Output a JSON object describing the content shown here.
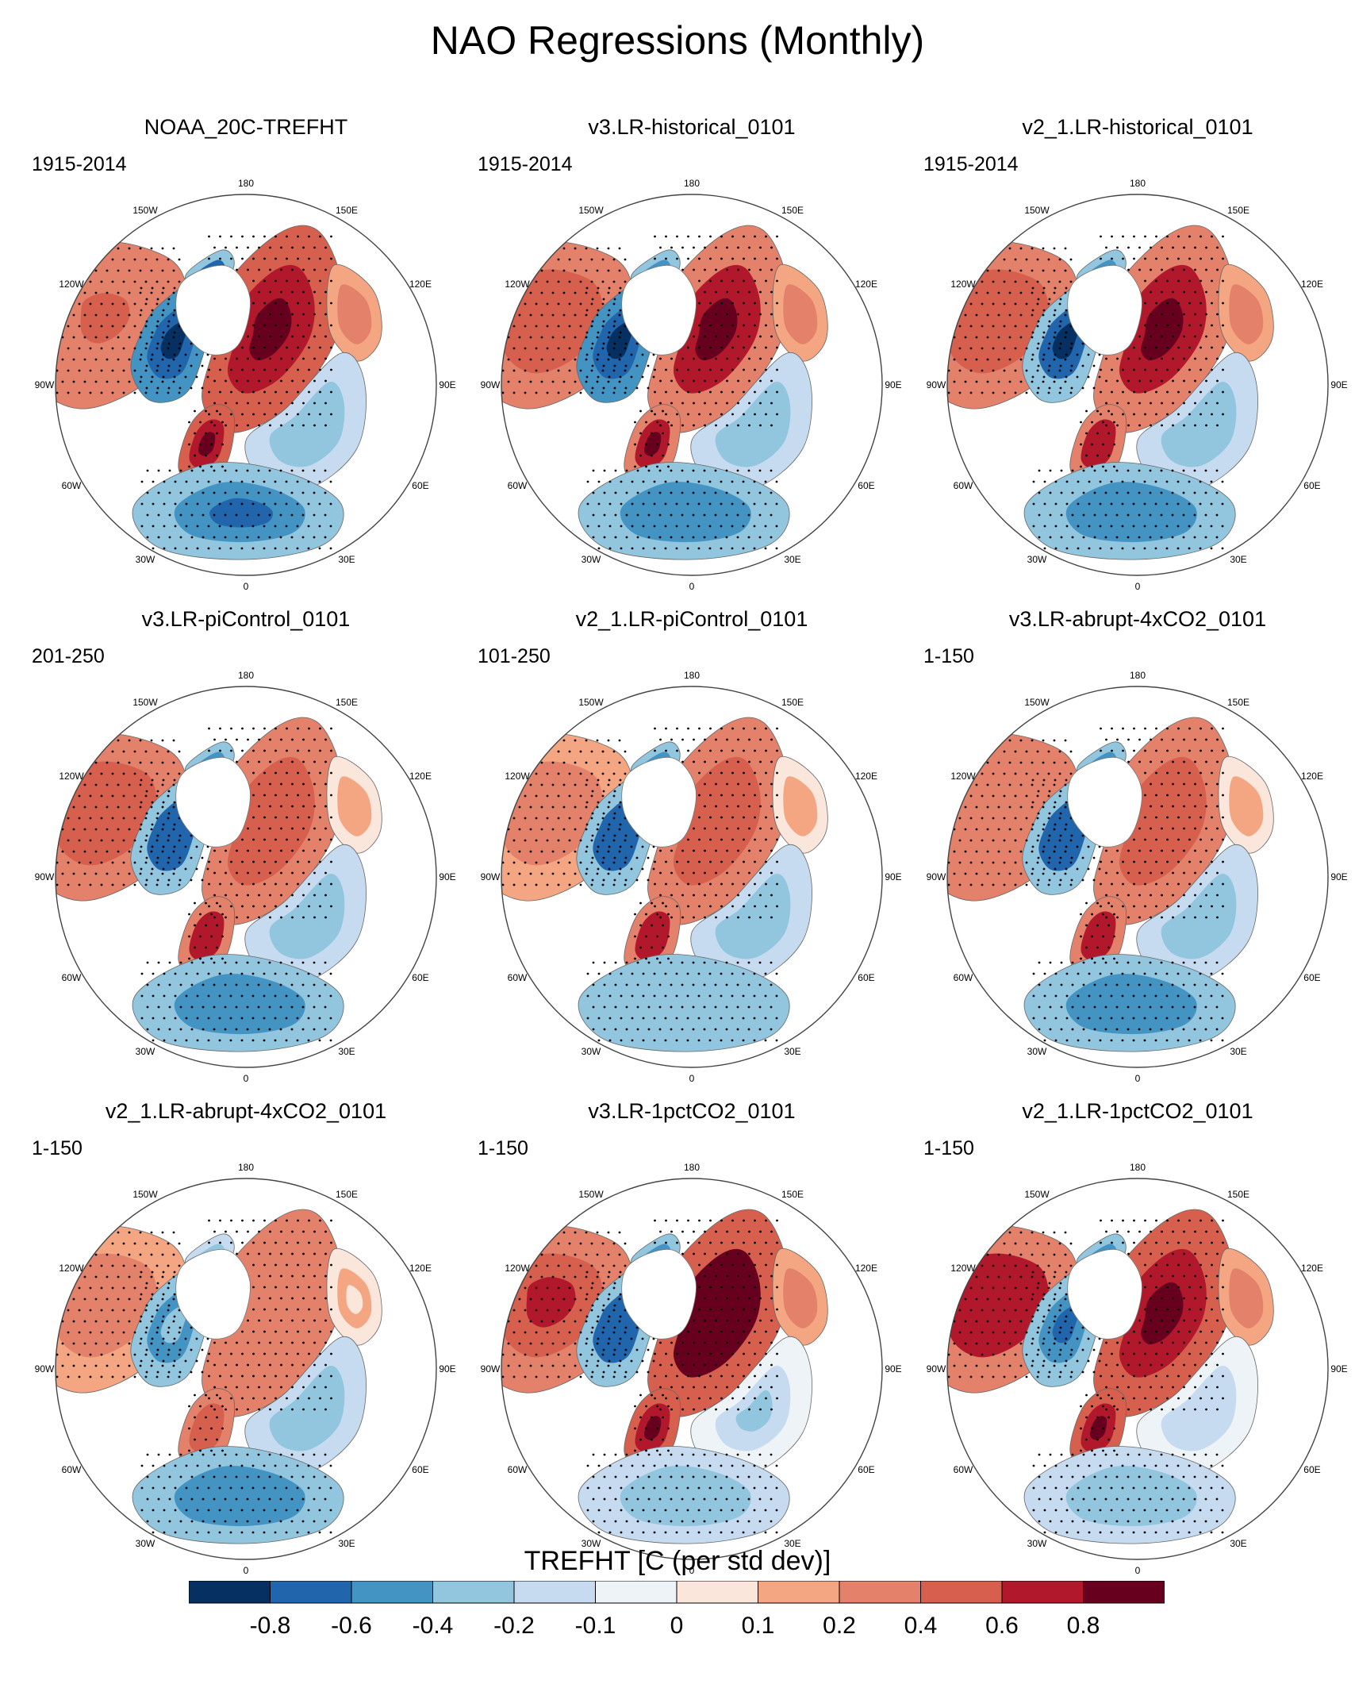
{
  "figure": {
    "title": "NAO Regressions (Monthly)"
  },
  "panels": [
    {
      "title": "NOAA_20C-TREFHT",
      "period": "1915-2014",
      "intensity": 1.0,
      "pacific": 0.45,
      "canada": -0.95,
      "siberia": 0.95,
      "europe": 0.9,
      "africa": -0.65
    },
    {
      "title": "v3.LR-historical_0101",
      "period": "1915-2014",
      "intensity": 0.95,
      "pacific": 0.5,
      "canada": -0.9,
      "siberia": 0.85,
      "europe": 0.85,
      "africa": -0.6
    },
    {
      "title": "v2_1.LR-historical_0101",
      "period": "1915-2014",
      "intensity": 0.95,
      "pacific": 0.6,
      "canada": -0.85,
      "siberia": 0.85,
      "europe": 0.8,
      "africa": -0.6
    },
    {
      "title": "v3.LR-piControl_0101",
      "period": "201-250",
      "intensity": 0.85,
      "pacific": 0.55,
      "canada": -0.85,
      "siberia": 0.6,
      "europe": 0.8,
      "africa": -0.55
    },
    {
      "title": "v2_1.LR-piControl_0101",
      "period": "101-250",
      "intensity": 0.8,
      "pacific": 0.4,
      "canada": -0.8,
      "siberia": 0.65,
      "europe": 0.75,
      "africa": -0.5
    },
    {
      "title": "v3.LR-abrupt-4xCO2_0101",
      "period": "1-150",
      "intensity": 0.85,
      "pacific": 0.45,
      "canada": -0.75,
      "siberia": 0.6,
      "europe": 0.75,
      "africa": -0.7
    },
    {
      "title": "v2_1.LR-abrupt-4xCO2_0101",
      "period": "1-150",
      "intensity": 0.7,
      "pacific": 0.4,
      "canada": -0.55,
      "siberia": 0.45,
      "europe": 0.6,
      "africa": -0.6
    },
    {
      "title": "v3.LR-1pctCO2_0101",
      "period": "1-150",
      "intensity": 1.0,
      "pacific": 0.7,
      "canada": -0.75,
      "siberia": 1.0,
      "europe": 0.95,
      "africa": -0.4
    },
    {
      "title": "v2_1.LR-1pctCO2_0101",
      "period": "1-150",
      "intensity": 1.0,
      "pacific": 0.75,
      "canada": -0.7,
      "siberia": 0.95,
      "europe": 0.9,
      "africa": -0.35
    }
  ],
  "longitude_labels": [
    "180",
    "150E",
    "120E",
    "90E",
    "60E",
    "30E",
    "0",
    "30W",
    "60W",
    "90W",
    "120W",
    "150W"
  ],
  "colorbar": {
    "title": "TREFHT [C (per std dev)]",
    "tick_labels": [
      "-0.8",
      "-0.6",
      "-0.4",
      "-0.2",
      "-0.1",
      "0",
      "0.1",
      "0.2",
      "0.4",
      "0.6",
      "0.8"
    ],
    "colors": [
      "#053061",
      "#2166ac",
      "#4393c3",
      "#92c5de",
      "#c6dbef",
      "#eef3f7",
      "#fbe6dc",
      "#f4a582",
      "#e3816b",
      "#d6604d",
      "#b2182b",
      "#67001f"
    ]
  },
  "chart_data": {
    "type": "heatmap",
    "title": "NAO Regressions (Monthly)",
    "projection": "north polar stereographic",
    "variable": "TREFHT",
    "units": "C (per std dev)",
    "levels": [
      -0.8,
      -0.6,
      -0.4,
      -0.2,
      -0.1,
      0,
      0.1,
      0.2,
      0.4,
      0.6,
      0.8
    ],
    "panels": [
      {
        "name": "NOAA_20C-TREFHT",
        "period": "1915-2014"
      },
      {
        "name": "v3.LR-historical_0101",
        "period": "1915-2014"
      },
      {
        "name": "v2_1.LR-historical_0101",
        "period": "1915-2014"
      },
      {
        "name": "v3.LR-piControl_0101",
        "period": "201-250"
      },
      {
        "name": "v2_1.LR-piControl_0101",
        "period": "101-250"
      },
      {
        "name": "v3.LR-abrupt-4xCO2_0101",
        "period": "1-150"
      },
      {
        "name": "v2_1.LR-abrupt-4xCO2_0101",
        "period": "1-150"
      },
      {
        "name": "v3.LR-1pctCO2_0101",
        "period": "1-150"
      },
      {
        "name": "v2_1.LR-1pctCO2_0101",
        "period": "1-150"
      }
    ]
  }
}
